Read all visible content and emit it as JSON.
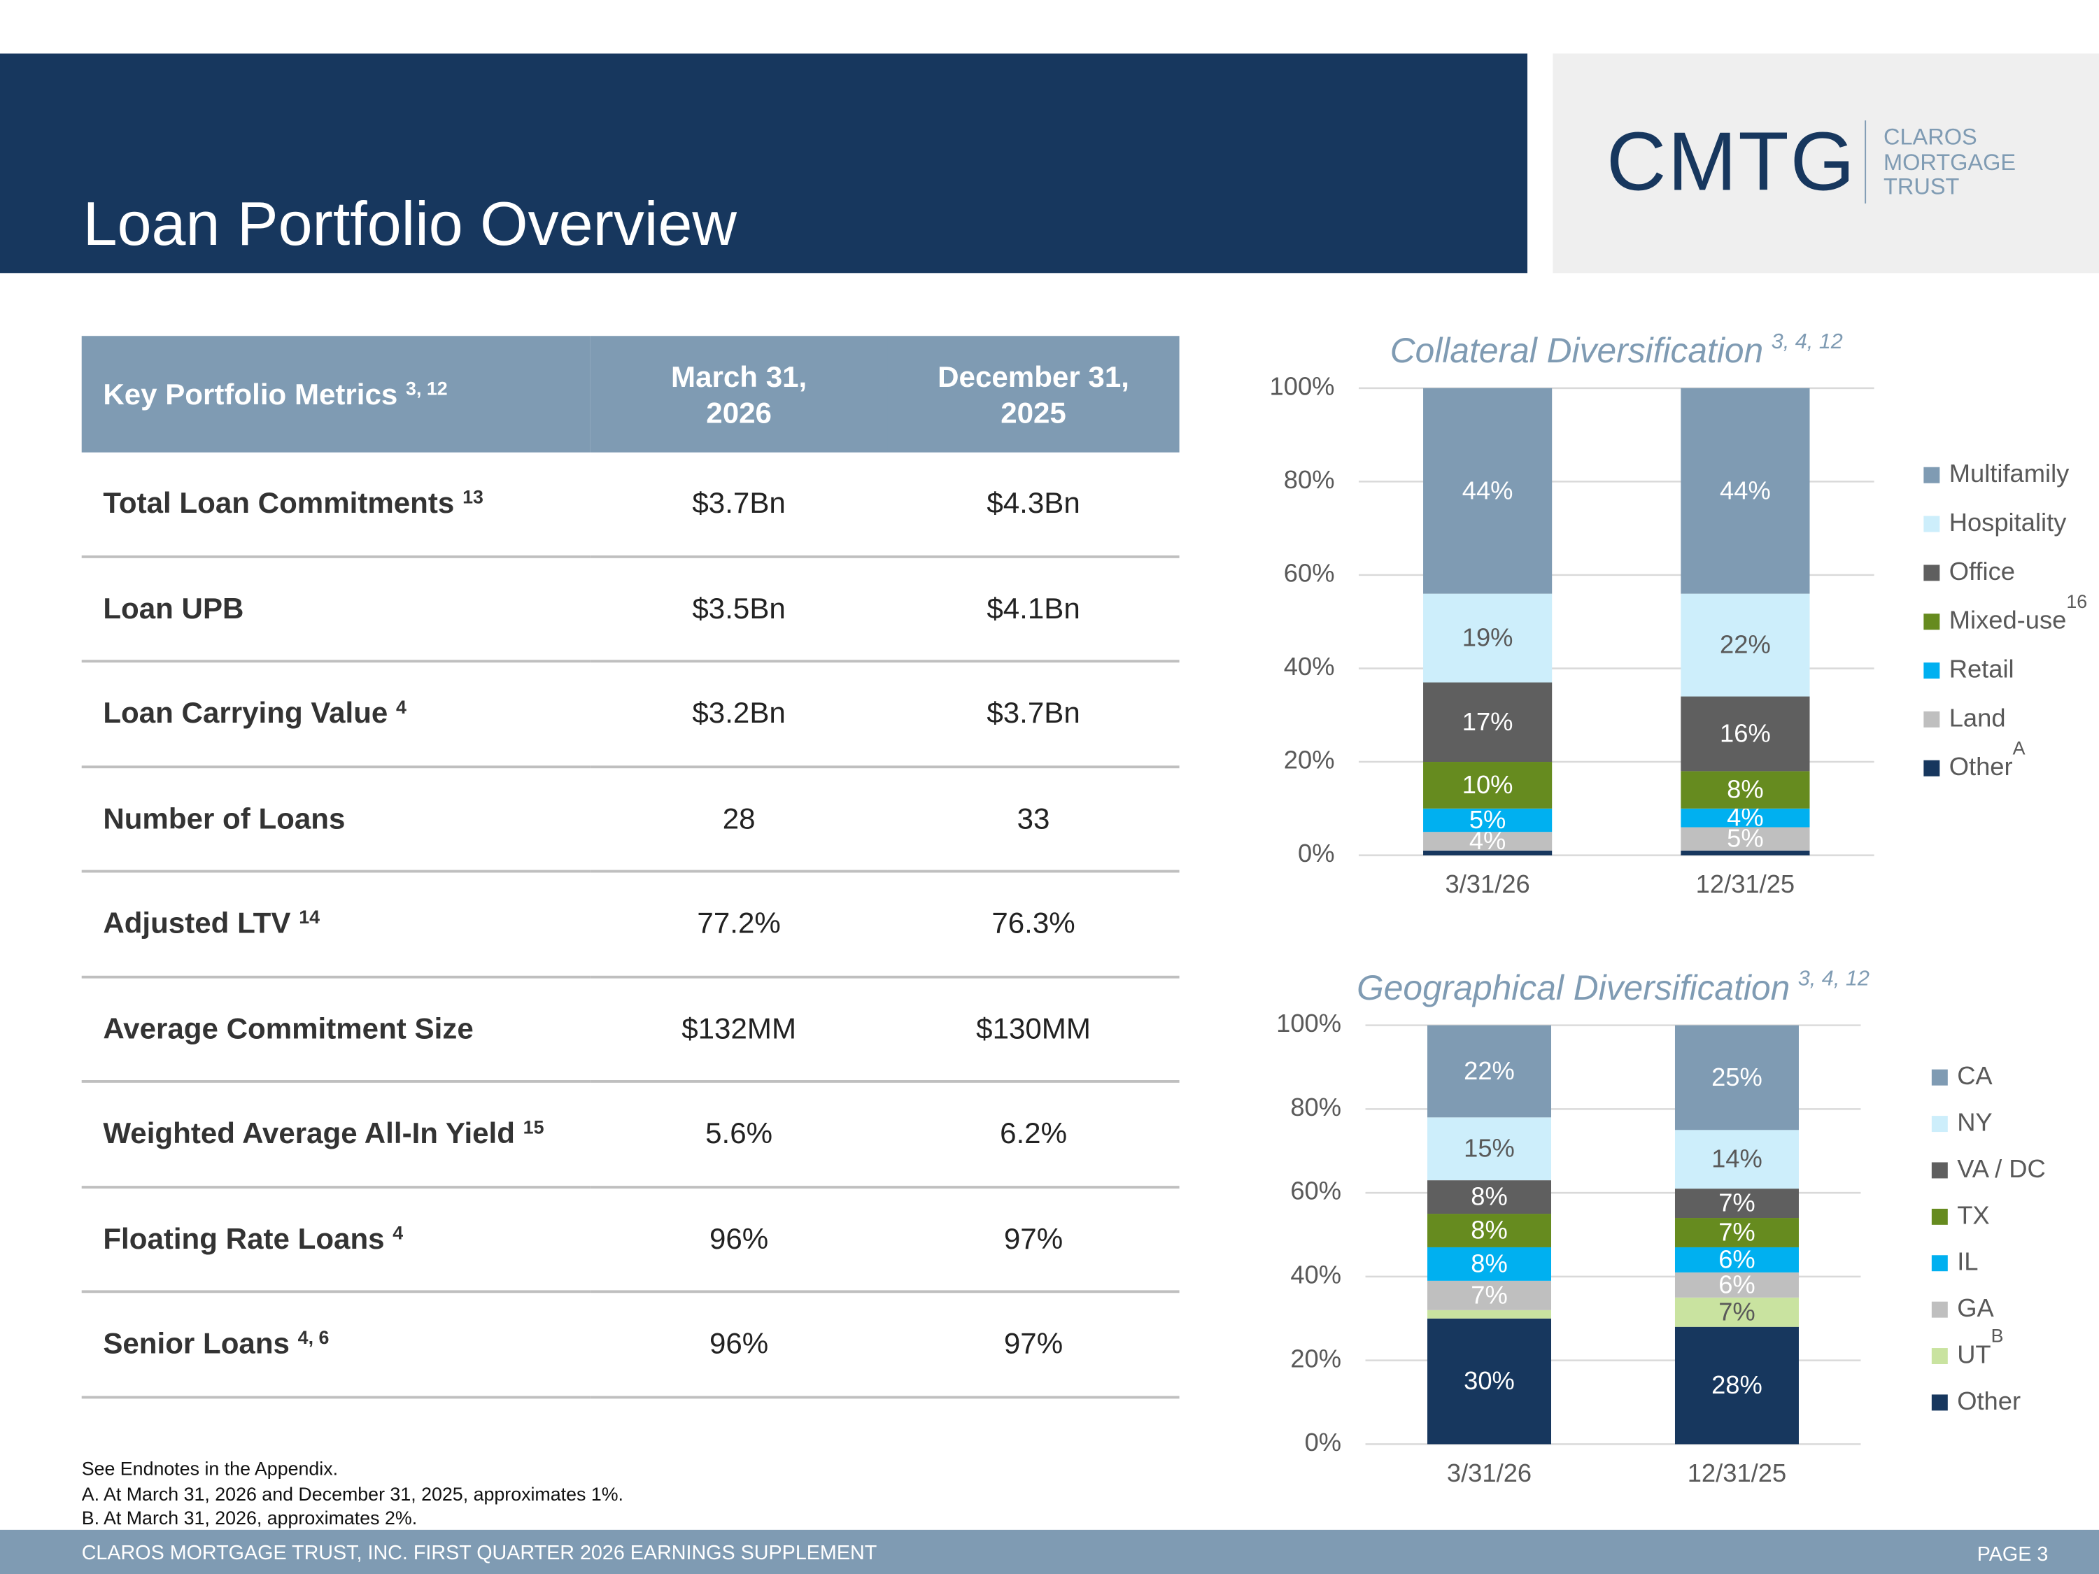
{
  "header": {
    "title": "Loan Portfolio Overview"
  },
  "logo": {
    "mark": "CMTG",
    "name_lines": [
      "CLAROS",
      "MORTGAGE",
      "TRUST"
    ]
  },
  "table": {
    "header": {
      "label": "Key Portfolio Metrics",
      "note": "3, 12",
      "columns": [
        "March 31, 2026",
        "December 31, 2025"
      ]
    },
    "rows": [
      {
        "label": "Total Loan Commitments",
        "note": "13",
        "values": [
          "$3.7Bn",
          "$4.3Bn"
        ]
      },
      {
        "label": "Loan UPB",
        "values": [
          "$3.5Bn",
          "$4.1Bn"
        ]
      },
      {
        "label": "Loan Carrying Value",
        "note": "4",
        "values": [
          "$3.2Bn",
          "$3.7Bn"
        ]
      },
      {
        "label": "Number of Loans",
        "values": [
          "28",
          "33"
        ]
      },
      {
        "label": "Adjusted LTV",
        "note": "14",
        "values": [
          "77.2%",
          "76.3%"
        ]
      },
      {
        "label": "Average Commitment Size",
        "values": [
          "$132MM",
          "$130MM"
        ]
      },
      {
        "label": "Weighted Average All-In Yield",
        "note": "15",
        "values": [
          "5.6%",
          "6.2%"
        ]
      },
      {
        "label": "Floating Rate Loans",
        "note": "4",
        "values": [
          "96%",
          "97%"
        ]
      },
      {
        "label": "Senior Loans",
        "note": "4, 6",
        "values": [
          "96%",
          "97%"
        ]
      }
    ]
  },
  "chart_data": [
    {
      "type": "bar",
      "stacked": true,
      "title": "Collateral Diversification",
      "title_note": "3, 4, 12",
      "categories": [
        "3/31/26",
        "12/31/25"
      ],
      "series": [
        {
          "name": "Multifamily",
          "color": "#7f9bb3",
          "values": [
            44,
            44
          ],
          "value_labels": [
            "44%",
            "44%"
          ]
        },
        {
          "name": "Hospitality",
          "color": "#cdeefb",
          "values": [
            19,
            22
          ],
          "value_labels": [
            "19%",
            "22%"
          ]
        },
        {
          "name": "Office",
          "color": "#5f5f5f",
          "values": [
            17,
            16
          ],
          "value_labels": [
            "17%",
            "16%"
          ]
        },
        {
          "name": "Mixed-use",
          "note": "16",
          "color": "#668b1f",
          "values": [
            10,
            8
          ],
          "value_labels": [
            "10%",
            "8%"
          ]
        },
        {
          "name": "Retail",
          "color": "#00b0f0",
          "values": [
            5,
            4
          ],
          "value_labels": [
            "5%",
            "4%"
          ]
        },
        {
          "name": "Land",
          "color": "#bfbfbf",
          "values": [
            4,
            5
          ],
          "value_labels": [
            "4%",
            "5%"
          ]
        },
        {
          "name": "Other",
          "note": "A",
          "color": "#17375e",
          "values": [
            1,
            1
          ],
          "value_labels": [
            null,
            null
          ]
        }
      ],
      "ylim": [
        0,
        100
      ],
      "yticks": [
        {
          "value": 0,
          "label": "0%"
        },
        {
          "value": 20,
          "label": "20%"
        },
        {
          "value": 40,
          "label": "40%"
        },
        {
          "value": 60,
          "label": "60%"
        },
        {
          "value": 80,
          "label": "80%"
        },
        {
          "value": 100,
          "label": "100%"
        }
      ],
      "grid": true,
      "legend": "right"
    },
    {
      "type": "bar",
      "stacked": true,
      "title": "Geographical Diversification",
      "title_note": "3, 4, 12",
      "categories": [
        "3/31/26",
        "12/31/25"
      ],
      "series": [
        {
          "name": "CA",
          "color": "#7f9bb3",
          "values": [
            22,
            25
          ],
          "value_labels": [
            "22%",
            "25%"
          ]
        },
        {
          "name": "NY",
          "color": "#cdeefb",
          "values": [
            15,
            14
          ],
          "value_labels": [
            "15%",
            "14%"
          ]
        },
        {
          "name": "VA / DC",
          "color": "#5f5f5f",
          "values": [
            8,
            7
          ],
          "value_labels": [
            "8%",
            "7%"
          ]
        },
        {
          "name": "TX",
          "color": "#668b1f",
          "values": [
            8,
            7
          ],
          "value_labels": [
            "8%",
            "7%"
          ]
        },
        {
          "name": "IL",
          "color": "#00b0f0",
          "values": [
            8,
            6
          ],
          "value_labels": [
            "8%",
            "6%"
          ]
        },
        {
          "name": "GA",
          "color": "#bfbfbf",
          "values": [
            7,
            6
          ],
          "value_labels": [
            "7%",
            "6%"
          ]
        },
        {
          "name": "UT",
          "note": "B",
          "color": "#c9e3a0",
          "values": [
            2,
            7
          ],
          "value_labels": [
            null,
            "7%"
          ]
        },
        {
          "name": "Other",
          "color": "#17375e",
          "values": [
            30,
            28
          ],
          "value_labels": [
            "30%",
            "28%"
          ]
        }
      ],
      "ylim": [
        0,
        100
      ],
      "yticks": [
        {
          "value": 0,
          "label": "0%"
        },
        {
          "value": 20,
          "label": "20%"
        },
        {
          "value": 40,
          "label": "40%"
        },
        {
          "value": 60,
          "label": "60%"
        },
        {
          "value": 80,
          "label": "80%"
        },
        {
          "value": 100,
          "label": "100%"
        }
      ],
      "grid": true,
      "legend": "right"
    }
  ],
  "footnotes": [
    "See Endnotes in the Appendix.",
    "A. At March 31, 2026 and December 31, 2025, approximates 1%.",
    "B. At March 31, 2026, approximates 2%."
  ],
  "footer": {
    "text": "CLAROS MORTGAGE TRUST, INC. FIRST QUARTER 2026 EARNINGS SUPPLEMENT",
    "page": "PAGE 3"
  }
}
